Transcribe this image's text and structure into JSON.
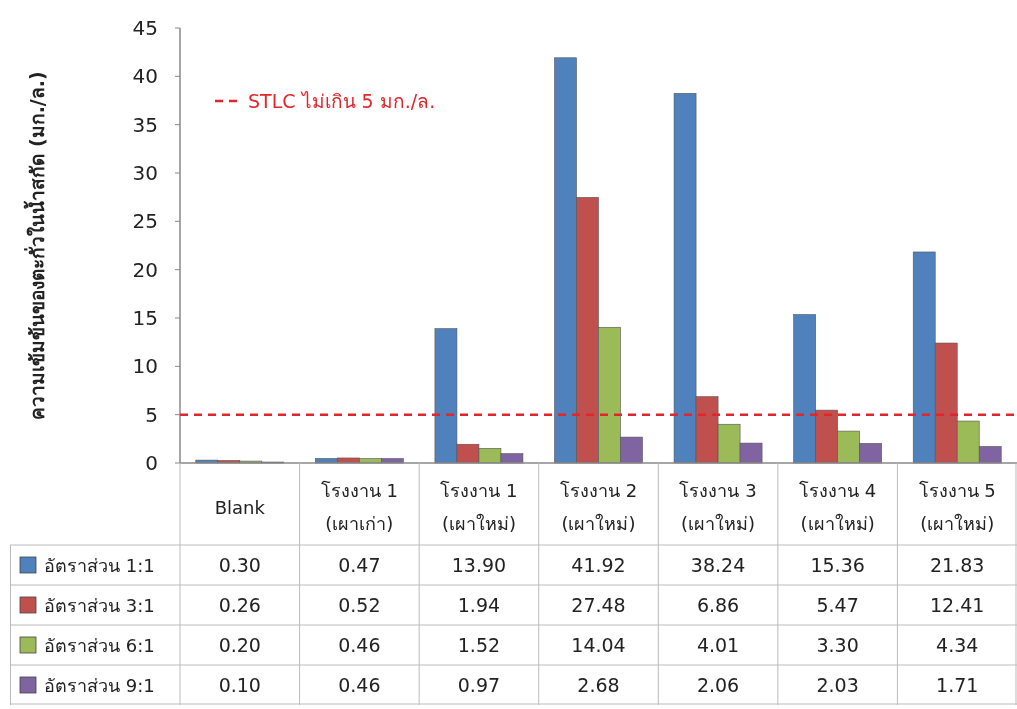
{
  "chart_data": {
    "type": "bar",
    "ylabel": "ความเข้มข้นของตะกั่วในน้ำสกัด (มก./ล.)",
    "categories": [
      "Blank",
      "โรงงาน 1 (เผาเก่า)",
      "โรงงาน 1 (เผาใหม่)",
      "โรงงาน 2 (เผาใหม่)",
      "โรงงาน 3 (เผาใหม่)",
      "โรงงาน 4 (เผาใหม่)",
      "โรงงาน 5 (เผาใหม่)"
    ],
    "series": [
      {
        "name": "อัตราส่วน 1:1",
        "color": "#4f81bd",
        "values": [
          0.3,
          0.47,
          13.9,
          41.92,
          38.24,
          15.36,
          21.83
        ],
        "value_labels": [
          "0.30",
          "0.47",
          "13.90",
          "41.92",
          "38.24",
          "15.36",
          "21.83"
        ]
      },
      {
        "name": "อัตราส่วน 3:1",
        "color": "#c0504d",
        "values": [
          0.26,
          0.52,
          1.94,
          27.48,
          6.86,
          5.47,
          12.41
        ],
        "value_labels": [
          "0.26",
          "0.52",
          "1.94",
          "27.48",
          "6.86",
          "5.47",
          "12.41"
        ]
      },
      {
        "name": "อัตราส่วน 6:1",
        "color": "#9bbb59",
        "values": [
          0.2,
          0.46,
          1.52,
          14.04,
          4.01,
          3.3,
          4.34
        ],
        "value_labels": [
          "0.20",
          "0.46",
          "1.52",
          "14.04",
          "4.01",
          "3.30",
          "4.34"
        ]
      },
      {
        "name": "อัตราส่วน 9:1",
        "color": "#8064a2",
        "values": [
          0.1,
          0.46,
          0.97,
          2.68,
          2.06,
          2.03,
          1.71
        ],
        "value_labels": [
          "0.10",
          "0.46",
          "0.97",
          "2.68",
          "2.06",
          "2.03",
          "1.71"
        ]
      }
    ],
    "ylim": [
      0,
      45
    ],
    "yticks": [
      0,
      5,
      10,
      15,
      20,
      25,
      30,
      35,
      40,
      45
    ],
    "ref_lines": [
      {
        "axis": "y",
        "value": 5,
        "label": "STLC  ไม่เกิน 5 มก./ล.",
        "color": "#e0262b",
        "line_style": "dashed"
      }
    ],
    "legend": "bottom",
    "grid": false
  }
}
